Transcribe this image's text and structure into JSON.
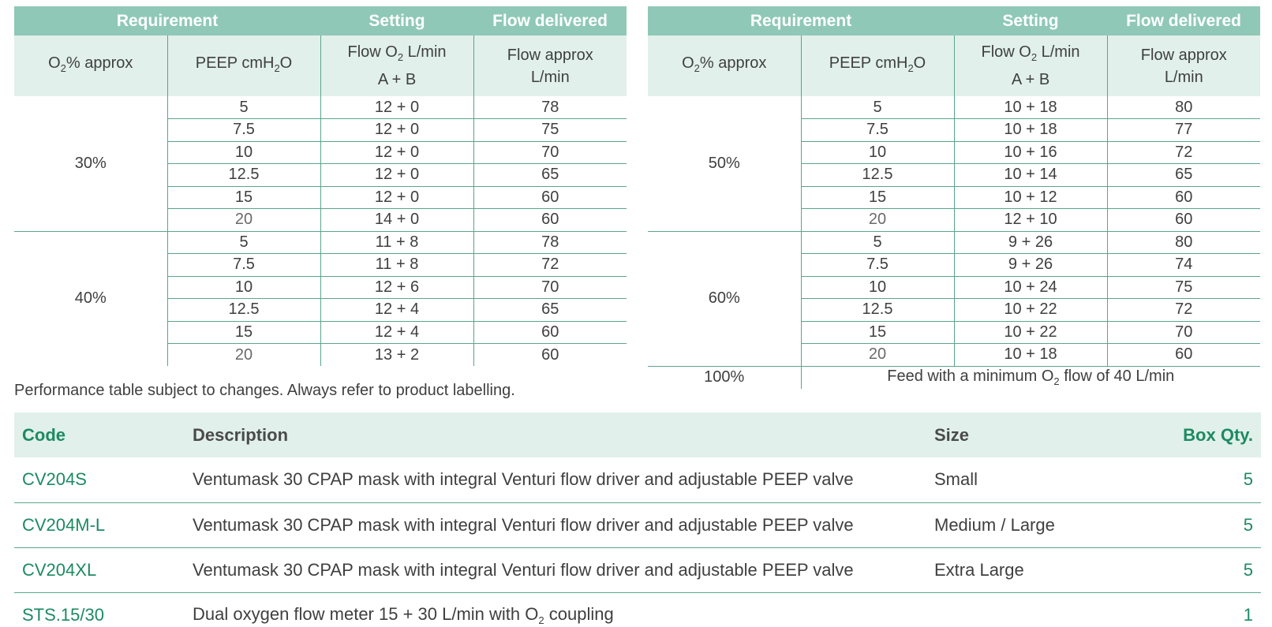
{
  "left_table": {
    "group_headers": [
      "Requirement",
      "Setting",
      "Flow delivered"
    ],
    "col_headers": {
      "o2_main": "O",
      "o2_sub": "2",
      "o2_rest": "% approx",
      "peep_main": "PEEP cmH",
      "peep_sub": "2",
      "peep_rest": "O",
      "flow_o2_main": "Flow O",
      "flow_o2_sub": "2",
      "flow_o2_rest": " L/min",
      "flow_o2_line2": "A + B",
      "flow_approx_line1": "Flow approx",
      "flow_approx_line2": "L/min"
    },
    "groups": [
      {
        "o2": "30%",
        "rows": [
          {
            "peep": "5",
            "setting": "12 + 0",
            "flow": "78"
          },
          {
            "peep": "7.5",
            "setting": "12 + 0",
            "flow": "75"
          },
          {
            "peep": "10",
            "setting": "12 + 0",
            "flow": "70"
          },
          {
            "peep": "12.5",
            "setting": "12 + 0",
            "flow": "65"
          },
          {
            "peep": "15",
            "setting": "12 + 0",
            "flow": "60"
          },
          {
            "peep": "20",
            "setting": "14 + 0",
            "flow": "60"
          }
        ]
      },
      {
        "o2": "40%",
        "rows": [
          {
            "peep": "5",
            "setting": "11 + 8",
            "flow": "78"
          },
          {
            "peep": "7.5",
            "setting": "11 + 8",
            "flow": "72"
          },
          {
            "peep": "10",
            "setting": "12 + 6",
            "flow": "70"
          },
          {
            "peep": "12.5",
            "setting": "12 + 4",
            "flow": "65"
          },
          {
            "peep": "15",
            "setting": "12 + 4",
            "flow": "60"
          },
          {
            "peep": "20",
            "setting": "13 + 2",
            "flow": "60"
          }
        ]
      }
    ]
  },
  "right_table": {
    "group_headers": [
      "Requirement",
      "Setting",
      "Flow delivered"
    ],
    "groups": [
      {
        "o2": "50%",
        "rows": [
          {
            "peep": "5",
            "setting": "10 + 18",
            "flow": "80"
          },
          {
            "peep": "7.5",
            "setting": "10 + 18",
            "flow": "77"
          },
          {
            "peep": "10",
            "setting": "10 + 16",
            "flow": "72"
          },
          {
            "peep": "12.5",
            "setting": "10 + 14",
            "flow": "65"
          },
          {
            "peep": "15",
            "setting": "10 + 12",
            "flow": "60"
          },
          {
            "peep": "20",
            "setting": "12 + 10",
            "flow": "60"
          }
        ]
      },
      {
        "o2": "60%",
        "rows": [
          {
            "peep": "5",
            "setting": "9 + 26",
            "flow": "80"
          },
          {
            "peep": "7.5",
            "setting": "9 + 26",
            "flow": "74"
          },
          {
            "peep": "10",
            "setting": "10 + 24",
            "flow": "75"
          },
          {
            "peep": "12.5",
            "setting": "10 + 22",
            "flow": "72"
          },
          {
            "peep": "15",
            "setting": "10 + 22",
            "flow": "70"
          },
          {
            "peep": "20",
            "setting": "10 + 18",
            "flow": "60"
          }
        ]
      }
    ],
    "footer_o2": "100%",
    "footer_text_pre": "Feed with a minimum O",
    "footer_text_sub": "2",
    "footer_text_post": " flow of 40 L/min"
  },
  "note": "Performance table subject to changes. Always refer to product labelling.",
  "products": {
    "headers": {
      "code": "Code",
      "description": "Description",
      "size": "Size",
      "qty": "Box Qty."
    },
    "rows": [
      {
        "code": "CV204S",
        "description": "Ventumask 30 CPAP mask with integral Venturi flow driver and adjustable PEEP valve",
        "size": "Small",
        "qty": "5"
      },
      {
        "code": "CV204M-L",
        "description": "Ventumask 30 CPAP mask with integral Venturi flow driver and adjustable PEEP valve",
        "size": "Medium / Large",
        "qty": "5"
      },
      {
        "code": "CV204XL",
        "description": "Ventumask 30 CPAP mask with integral Venturi flow driver and adjustable PEEP valve",
        "size": "Extra Large",
        "qty": "5"
      }
    ],
    "last_row": {
      "code": "STS.15/30",
      "desc_pre": "Dual oxygen flow meter 15 + 30 L/min with O",
      "desc_sub": "2",
      "desc_post": " coupling",
      "size": "",
      "qty": "1"
    }
  }
}
